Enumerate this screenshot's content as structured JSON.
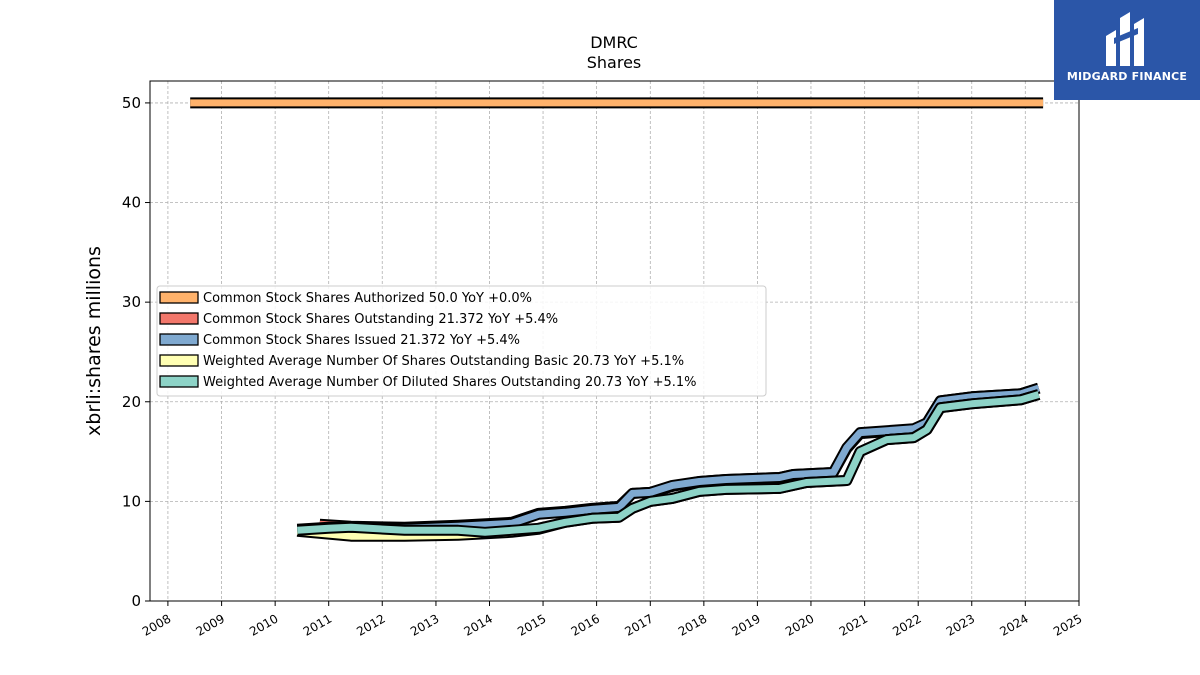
{
  "brand": {
    "name": "MIDGARD FINANCE",
    "logo_icon": "midgard-logo-icon",
    "color": "#2b56a8"
  },
  "chart_data": {
    "type": "line",
    "title": "DMRC",
    "subtitle": "Shares",
    "ylabel": "xbrli:shares millions",
    "xlabel": "",
    "xlim": [
      "2007-09-01",
      "2025-01-01"
    ],
    "ylim": [
      0,
      52.2
    ],
    "x_ticks": [
      "2008",
      "2009",
      "2010",
      "2011",
      "2012",
      "2013",
      "2014",
      "2015",
      "2016",
      "2017",
      "2018",
      "2019",
      "2020",
      "2021",
      "2022",
      "2023",
      "2024",
      "2025"
    ],
    "y_ticks": [
      0,
      10,
      20,
      30,
      40,
      50
    ],
    "grid": true,
    "legend_position": "center-left",
    "series": [
      {
        "name": "Common Stock Shares Authorized",
        "legend": "Common Stock Shares Authorized  50.0 YoY +0.0%",
        "color": "#ffb26b",
        "points": [
          [
            "2008-06-01",
            50.0
          ],
          [
            "2024-05-01",
            50.0
          ]
        ]
      },
      {
        "name": "Common Stock Shares Outstanding",
        "legend": "Common Stock Shares Outstanding  21.372 YoY +5.4%",
        "color": "#f2776b",
        "points": [
          [
            "2010-11-01",
            7.7
          ],
          [
            "2011-06-01",
            7.5
          ],
          [
            "2012-06-01",
            7.4
          ],
          [
            "2013-06-01",
            7.6
          ],
          [
            "2014-06-01",
            7.9
          ],
          [
            "2014-12-01",
            8.8
          ],
          [
            "2015-06-01",
            9.0
          ],
          [
            "2015-12-01",
            9.3
          ],
          [
            "2016-06-01",
            9.5
          ],
          [
            "2016-09-01",
            10.8
          ],
          [
            "2017-01-01",
            10.9
          ],
          [
            "2017-06-01",
            11.5
          ],
          [
            "2017-12-01",
            12.0
          ],
          [
            "2018-06-01",
            12.2
          ],
          [
            "2019-06-01",
            12.4
          ],
          [
            "2019-09-01",
            12.7
          ],
          [
            "2020-06-01",
            12.9
          ],
          [
            "2020-09-01",
            15.3
          ],
          [
            "2020-12-01",
            16.8
          ],
          [
            "2021-06-01",
            17.0
          ],
          [
            "2021-12-01",
            17.2
          ],
          [
            "2022-03-01",
            17.9
          ],
          [
            "2022-06-01",
            20.1
          ],
          [
            "2023-01-01",
            20.5
          ],
          [
            "2023-12-01",
            20.8
          ],
          [
            "2024-04-01",
            21.372
          ]
        ]
      },
      {
        "name": "Common Stock Shares Issued",
        "legend": "Common Stock Shares Issued  21.372 YoY +5.4%",
        "color": "#7fa9d0",
        "points": [
          [
            "2010-06-01",
            7.2
          ],
          [
            "2011-01-01",
            7.4
          ],
          [
            "2011-06-01",
            7.4
          ],
          [
            "2012-06-01",
            7.3
          ],
          [
            "2013-06-01",
            7.5
          ],
          [
            "2014-06-01",
            7.8
          ],
          [
            "2014-12-01",
            8.7
          ],
          [
            "2015-06-01",
            8.9
          ],
          [
            "2015-12-01",
            9.2
          ],
          [
            "2016-06-01",
            9.4
          ],
          [
            "2016-09-01",
            10.8
          ],
          [
            "2017-01-01",
            10.9
          ],
          [
            "2017-06-01",
            11.6
          ],
          [
            "2017-12-01",
            12.0
          ],
          [
            "2018-06-01",
            12.2
          ],
          [
            "2019-06-01",
            12.4
          ],
          [
            "2019-09-01",
            12.7
          ],
          [
            "2020-06-01",
            12.9
          ],
          [
            "2020-09-01",
            15.4
          ],
          [
            "2020-12-01",
            16.9
          ],
          [
            "2021-06-01",
            17.1
          ],
          [
            "2021-12-01",
            17.3
          ],
          [
            "2022-03-01",
            17.9
          ],
          [
            "2022-06-01",
            20.1
          ],
          [
            "2023-01-01",
            20.5
          ],
          [
            "2023-12-01",
            20.8
          ],
          [
            "2024-04-01",
            21.372
          ]
        ]
      },
      {
        "name": "Weighted Average Number Of Shares Outstanding Basic",
        "legend": "Weighted Average Number Of Shares Outstanding Basic  20.73 YoY +5.1%",
        "color": "#ffffb3",
        "points": [
          [
            "2010-06-01",
            7.0
          ],
          [
            "2011-06-01",
            6.5
          ],
          [
            "2012-06-01",
            6.5
          ],
          [
            "2013-06-01",
            6.6
          ],
          [
            "2014-06-01",
            6.9
          ],
          [
            "2014-12-01",
            7.2
          ],
          [
            "2015-06-01",
            7.9
          ],
          [
            "2015-12-01",
            8.3
          ],
          [
            "2016-06-01",
            8.4
          ],
          [
            "2016-09-01",
            9.3
          ],
          [
            "2017-01-01",
            10.0
          ],
          [
            "2017-06-01",
            10.3
          ],
          [
            "2017-12-01",
            11.0
          ],
          [
            "2018-06-01",
            11.2
          ],
          [
            "2019-06-01",
            11.3
          ],
          [
            "2019-12-01",
            11.9
          ],
          [
            "2020-09-01",
            12.1
          ],
          [
            "2020-12-01",
            15.0
          ],
          [
            "2021-06-01",
            16.2
          ],
          [
            "2021-12-01",
            16.4
          ],
          [
            "2022-03-01",
            17.2
          ],
          [
            "2022-06-01",
            19.4
          ],
          [
            "2023-01-01",
            19.8
          ],
          [
            "2023-12-01",
            20.2
          ],
          [
            "2024-04-01",
            20.73
          ]
        ]
      },
      {
        "name": "Weighted Average Number Of Diluted Shares Outstanding",
        "legend": "Weighted Average Number Of Diluted Shares Outstanding  20.73 YoY +5.1%",
        "color": "#8dd3c7",
        "points": [
          [
            "2010-06-01",
            7.1
          ],
          [
            "2011-01-01",
            7.3
          ],
          [
            "2011-06-01",
            7.4
          ],
          [
            "2012-06-01",
            7.1
          ],
          [
            "2013-06-01",
            7.1
          ],
          [
            "2013-12-01",
            6.9
          ],
          [
            "2014-06-01",
            7.1
          ],
          [
            "2014-12-01",
            7.3
          ],
          [
            "2015-06-01",
            7.9
          ],
          [
            "2015-12-01",
            8.3
          ],
          [
            "2016-06-01",
            8.4
          ],
          [
            "2016-09-01",
            9.3
          ],
          [
            "2017-01-01",
            10.0
          ],
          [
            "2017-06-01",
            10.3
          ],
          [
            "2017-12-01",
            11.0
          ],
          [
            "2018-06-01",
            11.2
          ],
          [
            "2019-06-01",
            11.3
          ],
          [
            "2019-12-01",
            11.9
          ],
          [
            "2020-09-01",
            12.1
          ],
          [
            "2020-12-01",
            15.0
          ],
          [
            "2021-06-01",
            16.2
          ],
          [
            "2021-12-01",
            16.4
          ],
          [
            "2022-03-01",
            17.2
          ],
          [
            "2022-06-01",
            19.4
          ],
          [
            "2023-01-01",
            19.8
          ],
          [
            "2023-12-01",
            20.2
          ],
          [
            "2024-04-01",
            20.73
          ]
        ]
      }
    ]
  }
}
